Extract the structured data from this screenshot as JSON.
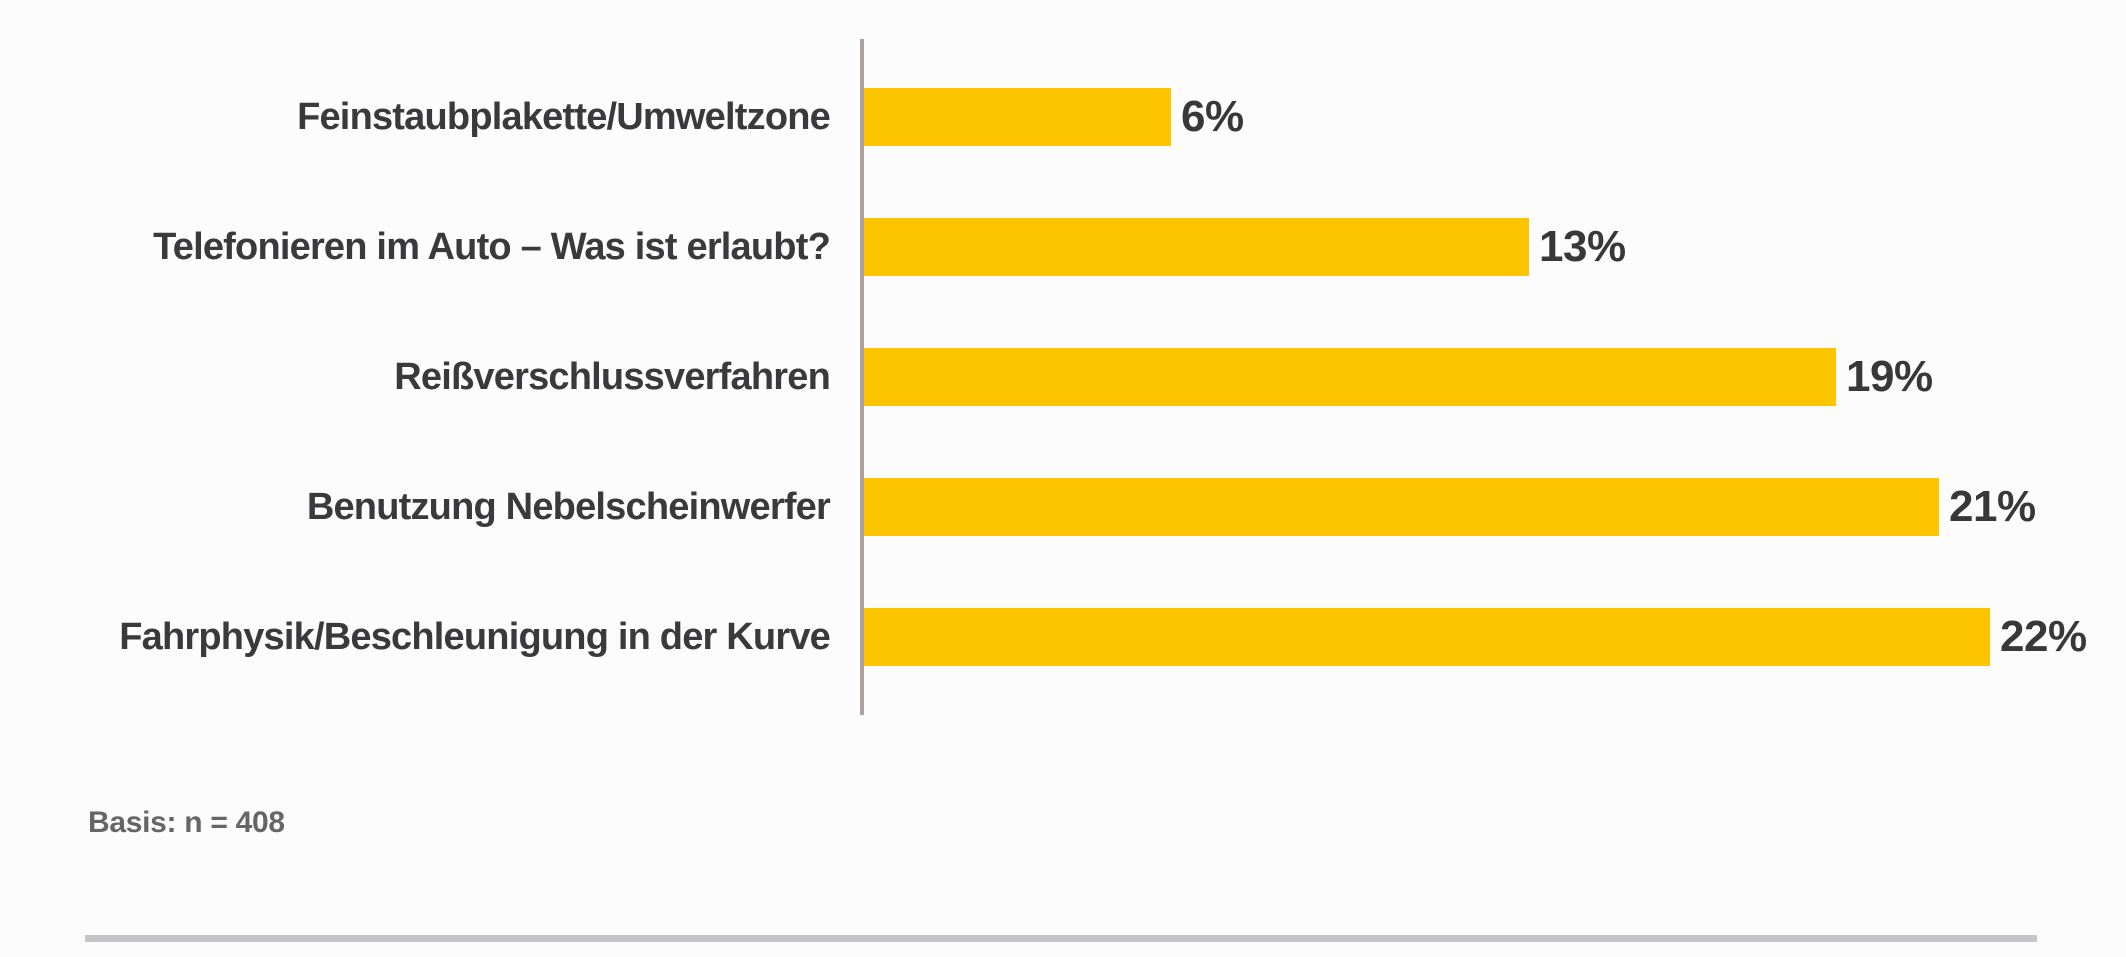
{
  "chart_data": {
    "type": "bar",
    "orientation": "horizontal",
    "title": "",
    "xlabel": "",
    "ylabel": "",
    "grid": false,
    "legend": false,
    "axis_line_side": "left",
    "categories": [
      "Feinstaubplakette/Umweltzone",
      "Telefonieren im Auto – Was ist erlaubt?",
      "Reißverschlussverfahren",
      "Benutzung Nebelscheinwerfer",
      "Fahrphysik/Beschleunigung in der Kurve"
    ],
    "values": [
      6,
      13,
      19,
      21,
      22
    ],
    "value_labels": [
      "6%",
      "13%",
      "19%",
      "21%",
      "22%"
    ],
    "xlim": [
      0,
      22
    ],
    "bar_color": "#fcc500"
  },
  "footer": {
    "basis_label": "Basis: n = 408"
  },
  "colors": {
    "bar_yellow": "#fcc500",
    "category_text": "#3a3a3c",
    "value_text": "#383838",
    "axis_line": "#aba39f",
    "basis_text": "#666666",
    "divider": "#c6c6c9",
    "background": "#fcfcfd"
  }
}
